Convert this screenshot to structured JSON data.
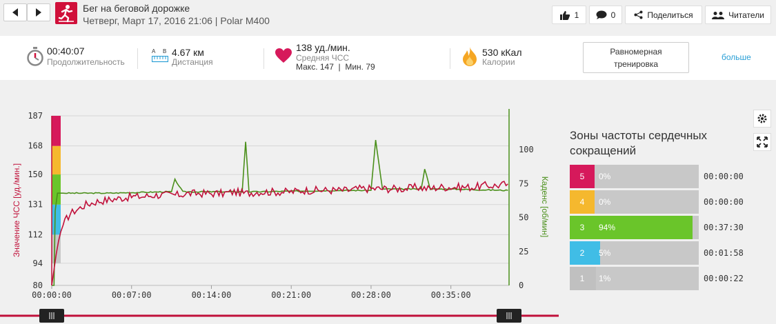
{
  "header": {
    "title": "Бег на беговой дорожке",
    "subtitle": "Четверг, Март 17, 2016 21:06 | Polar M400",
    "like_count": "1",
    "comment_count": "0",
    "share_label": "Поделиться",
    "followers_label": "Читатели"
  },
  "summary": {
    "duration_value": "00:40:07",
    "duration_label": "Продолжительность",
    "distance_value": "4.67 км",
    "distance_label": "Дистанция",
    "distance_scale_a": "A",
    "distance_scale_b": "B",
    "hr_value": "138 уд./мин.",
    "hr_label": "Средняя ЧСС",
    "hr_minmax": "Макс. 147  |  Мин. 79",
    "calories_value": "530 кКал",
    "calories_label": "Калории",
    "training_button_line1": "Равномерная",
    "training_button_line2": "тренировка",
    "more_label": "больше"
  },
  "colors": {
    "hr_line": "#c0103a",
    "cadence_line": "#4a8f1a",
    "zone5": "#d6195b",
    "zone4": "#f5b82e",
    "zone3": "#6ac52a",
    "zone2": "#40bde6",
    "zone1": "#c8c8c8",
    "accent": "#2a9fd6"
  },
  "chart_data": {
    "type": "line",
    "x_tick_labels": [
      "00:00:00",
      "00:07:00",
      "00:14:00",
      "00:21:00",
      "00:28:00",
      "00:35:00"
    ],
    "x_range_minutes": [
      0,
      40.1
    ],
    "y_left": {
      "label": "Значение ЧСС [уд./мин.]",
      "ticks": [
        80,
        94,
        112,
        131,
        150,
        168,
        187
      ],
      "range": [
        80,
        187
      ]
    },
    "y_right": {
      "label": "Каденс [об/мин]",
      "ticks": [
        0,
        25,
        50,
        75,
        100
      ],
      "range": [
        0,
        125
      ]
    },
    "hr_zones_bands": [
      {
        "zone": 1,
        "from": 94,
        "to": 112
      },
      {
        "zone": 2,
        "from": 112,
        "to": 131
      },
      {
        "zone": 3,
        "from": 131,
        "to": 150
      },
      {
        "zone": 4,
        "from": 150,
        "to": 168
      },
      {
        "zone": 5,
        "from": 168,
        "to": 187
      }
    ],
    "series": [
      {
        "name": "ЧСС",
        "x_minutes": [
          0,
          0.2,
          0.4,
          0.6,
          0.8,
          1,
          1.3,
          1.6,
          2,
          2.5,
          3,
          3.5,
          4,
          5,
          6,
          7,
          8,
          9,
          10,
          11,
          12,
          13,
          14,
          15,
          16,
          17,
          18,
          19,
          20,
          21,
          22,
          23,
          24,
          25,
          26,
          27,
          28,
          29,
          30,
          31,
          32,
          33,
          34,
          35,
          36,
          37,
          38,
          39,
          40
        ],
        "values": [
          80,
          90,
          100,
          108,
          114,
          118,
          122,
          125,
          127,
          129,
          131,
          132,
          133,
          134,
          135,
          136,
          136,
          137,
          137,
          137,
          138,
          138,
          138,
          138,
          139,
          138,
          139,
          139,
          139,
          139,
          140,
          140,
          140,
          140,
          140,
          141,
          141,
          141,
          141,
          141,
          142,
          141,
          142,
          142,
          142,
          142,
          143,
          143,
          144
        ]
      },
      {
        "name": "Каденс",
        "x_minutes": [
          0,
          0.2,
          0.3,
          0.5,
          1,
          5,
          10,
          10.5,
          10.8,
          11.5,
          16,
          16.7,
          17,
          17.3,
          18,
          25,
          27.5,
          28,
          28.4,
          29,
          32,
          32.4,
          32.7,
          33.2,
          35,
          40
        ],
        "values": [
          0,
          0,
          55,
          68,
          68,
          68,
          69,
          69,
          78,
          69,
          69,
          69,
          106,
          69,
          69,
          70,
          70,
          70,
          107,
          71,
          71,
          71,
          86,
          71,
          71,
          70
        ]
      }
    ]
  },
  "zones": {
    "title": "Зоны частоты сердечных сокращений",
    "rows": [
      {
        "num": "5",
        "pct": "0%",
        "fraction": 0.0,
        "time": "00:00:00"
      },
      {
        "num": "4",
        "pct": "0%",
        "fraction": 0.0,
        "time": "00:00:00"
      },
      {
        "num": "3",
        "pct": "94%",
        "fraction": 0.94,
        "time": "00:37:30"
      },
      {
        "num": "2",
        "pct": "5%",
        "fraction": 0.05,
        "time": "00:01:58"
      },
      {
        "num": "1",
        "pct": "1%",
        "fraction": 0.01,
        "time": "00:00:22"
      }
    ]
  },
  "timeline": {
    "range_start_fraction": 0.0,
    "range_end_fraction": 1.0
  }
}
